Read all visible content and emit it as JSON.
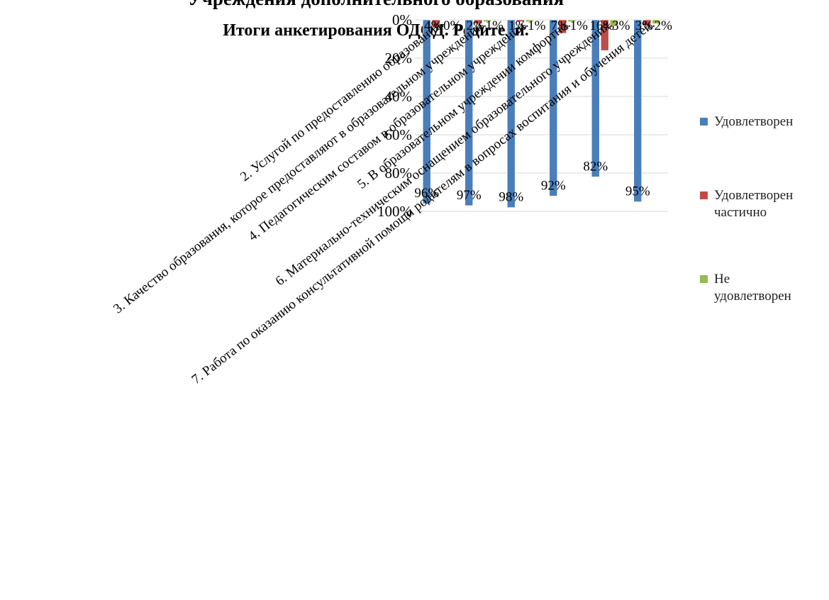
{
  "chart_data": {
    "type": "bar",
    "title": "Учреждения дополнительного образования",
    "subtitle": "Итоги анкетирования ОДОД. Родители.",
    "categories": [
      "2. Услугой по предоставлению образования.",
      "3. Качество образования, которое предоставляют в образовательном учреждении.",
      "4. Педагогическим составом в образовательном учреждении.",
      "5. В образовательном учреждении комфортно.",
      "6. Материально-техническим оснащением образовательного учреждения.",
      "7. Работа по оказанию консультативной помощи родителям в вопросах воспитания и обучения детей."
    ],
    "y_tick_labels": [
      "0%",
      "20%",
      "40%",
      "60%",
      "80%",
      "100%"
    ],
    "ylim": [
      0,
      100
    ],
    "y_reversed": true,
    "grid": true,
    "legend_position": "right",
    "series": [
      {
        "name": "Удовлетворен",
        "color": "#4a7ebb",
        "values": [
          96,
          97,
          98,
          92,
          82,
          95
        ],
        "labels": [
          "96%",
          "97%",
          "98%",
          "92%",
          "82%",
          "95%"
        ]
      },
      {
        "name": "Удовлетворен частично",
        "color": "#be4b48",
        "values": [
          4,
          2,
          1,
          7,
          16,
          3
        ],
        "labels": [
          "4%",
          "2%",
          "1%",
          "7%",
          "16%",
          "3%"
        ]
      },
      {
        "name": "Не удовлетворен",
        "color": "#98b954",
        "values": [
          0,
          1,
          1,
          1,
          3,
          2
        ],
        "labels": [
          "0%",
          "1%",
          "1%",
          "1%",
          "3%",
          "2%"
        ]
      }
    ]
  },
  "legend": {
    "items": [
      {
        "lines": [
          "Удовлетворен"
        ],
        "color": "#4a7ebb"
      },
      {
        "lines": [
          "Удовлетворен",
          "частично"
        ],
        "color": "#be4b48"
      },
      {
        "lines": [
          "Не",
          "удовлетворен"
        ],
        "color": "#98b954"
      }
    ]
  }
}
